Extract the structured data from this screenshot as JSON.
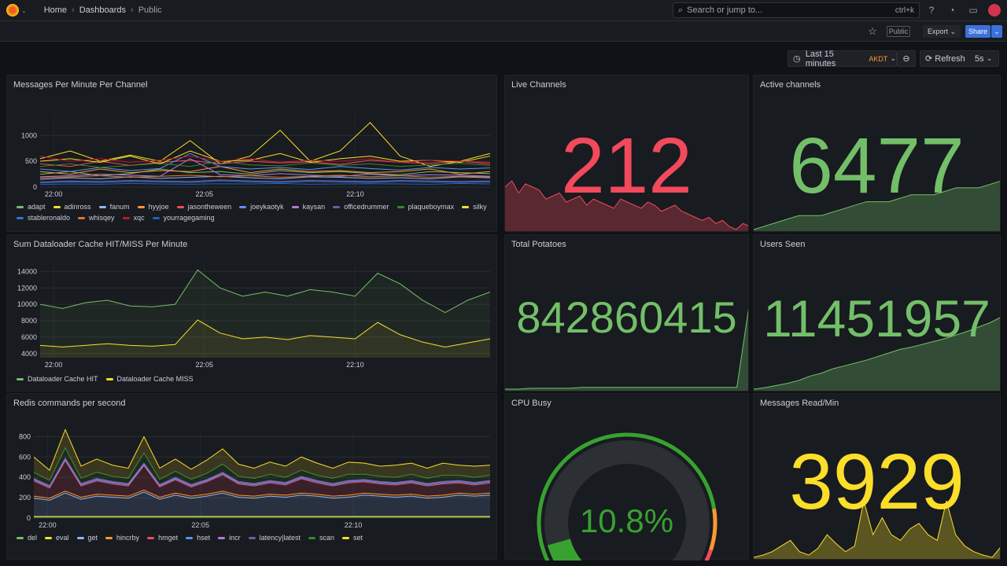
{
  "topbar": {
    "breadcrumbs": [
      "Home",
      "Dashboards",
      "Public"
    ],
    "search_placeholder": "Search or jump to...",
    "search_shortcut": "ctrl+k"
  },
  "toolbar": {
    "public_badge": "Public",
    "export": "Export",
    "share": "Share",
    "time_range": "Last 15 minutes",
    "timezone": "AKDT",
    "refresh": "Refresh",
    "refresh_interval": "5s"
  },
  "panels": {
    "messages": {
      "title": "Messages Per Minute Per Channel"
    },
    "cache": {
      "title": "Sum Dataloader Cache HIT/MISS Per Minute"
    },
    "redis": {
      "title": "Redis commands per second"
    },
    "live": {
      "title": "Live Channels",
      "value": "212",
      "color": "#f2495c"
    },
    "active": {
      "title": "Active channels",
      "value": "6477",
      "color": "#73bf69"
    },
    "potatoes": {
      "title": "Total Potatoes",
      "value": "842860415",
      "color": "#73bf69"
    },
    "users": {
      "title": "Users Seen",
      "value": "11451957",
      "color": "#73bf69"
    },
    "cpu": {
      "title": "CPU Busy",
      "value": "10.8%",
      "percent": 10.8,
      "color": "#37a22f"
    },
    "read": {
      "title": "Messages Read/Min",
      "value": "3929",
      "color": "#fade2a"
    }
  },
  "chart_data": [
    {
      "type": "line",
      "title": "Messages Per Minute Per Channel",
      "xticks": [
        "22:00",
        "22:05",
        "22:10"
      ],
      "yticks": [
        "0",
        "500",
        "1000"
      ],
      "ylim": [
        0,
        1400
      ],
      "series": [
        {
          "name": "adapt",
          "color": "#73bf69",
          "values": [
            250,
            300,
            220,
            260,
            350,
            280,
            300,
            250,
            320,
            280,
            300,
            260,
            240,
            300,
            280,
            260
          ]
        },
        {
          "name": "adinross",
          "color": "#fade2a",
          "values": [
            550,
            700,
            500,
            620,
            500,
            900,
            450,
            600,
            1100,
            500,
            700,
            1250,
            600,
            400,
            500,
            650
          ]
        },
        {
          "name": "fanum",
          "color": "#8ab8ff",
          "values": [
            150,
            180,
            160,
            200,
            170,
            190,
            210,
            180,
            160,
            200,
            190,
            170,
            180,
            160,
            200,
            180
          ]
        },
        {
          "name": "hyyjoe",
          "color": "#ff9830",
          "values": [
            300,
            250,
            350,
            280,
            320,
            300,
            400,
            280,
            350,
            300,
            320,
            280,
            300,
            350,
            250,
            300
          ]
        },
        {
          "name": "jasontheween",
          "color": "#f2495c",
          "values": [
            450,
            400,
            500,
            420,
            480,
            520,
            450,
            500,
            470,
            490,
            440,
            520,
            480,
            460,
            500,
            450
          ]
        },
        {
          "name": "joeykaotyk",
          "color": "#5794f2",
          "values": [
            350,
            300,
            380,
            320,
            360,
            650,
            400,
            350,
            380,
            340,
            400,
            360,
            330,
            380,
            350,
            370
          ]
        },
        {
          "name": "kaysan",
          "color": "#b877d9",
          "values": [
            200,
            220,
            250,
            230,
            210,
            550,
            240,
            220,
            260,
            230,
            210,
            250,
            220,
            240,
            230,
            210
          ]
        },
        {
          "name": "officedrummer",
          "color": "#705da0",
          "values": [
            100,
            120,
            110,
            130,
            120,
            110,
            140,
            120,
            110,
            130,
            120,
            110,
            130,
            120,
            110,
            120
          ]
        },
        {
          "name": "plaqueboymax",
          "color": "#37872d",
          "values": [
            400,
            450,
            380,
            420,
            460,
            400,
            500,
            430,
            410,
            470,
            420,
            450,
            400,
            430,
            460,
            420
          ]
        },
        {
          "name": "silky",
          "color": "#fade2a",
          "values": [
            500,
            550,
            480,
            600,
            450,
            700,
            500,
            520,
            650,
            480,
            550,
            600,
            500,
            520,
            480,
            600
          ]
        },
        {
          "name": "stableronaldo",
          "color": "#3274d9",
          "values": [
            80,
            100,
            90,
            110,
            100,
            90,
            120,
            100,
            90,
            110,
            100,
            90,
            110,
            100,
            90,
            100
          ]
        },
        {
          "name": "whisqey",
          "color": "#e0752d",
          "values": [
            180,
            200,
            220,
            190,
            210,
            230,
            200,
            220,
            190,
            210,
            230,
            200,
            220,
            190,
            210,
            200
          ]
        },
        {
          "name": "xqc",
          "color": "#c4162a",
          "values": [
            600,
            500,
            550,
            480,
            520,
            600,
            500,
            550,
            480,
            520,
            500,
            550,
            480,
            520,
            500,
            480
          ]
        },
        {
          "name": "yourragegaming",
          "color": "#1f60c4",
          "values": [
            50,
            60,
            55,
            70,
            60,
            55,
            65,
            60,
            70,
            55,
            60,
            65,
            60,
            55,
            70,
            60
          ]
        }
      ]
    },
    {
      "type": "line",
      "title": "Sum Dataloader Cache HIT/MISS Per Minute",
      "xticks": [
        "22:00",
        "22:05",
        "22:10"
      ],
      "yticks": [
        "4000",
        "6000",
        "8000",
        "10000",
        "12000",
        "14000"
      ],
      "ylim": [
        3500,
        15000
      ],
      "series": [
        {
          "name": "Dataloader Cache HIT",
          "color": "#73bf69",
          "values": [
            10000,
            9500,
            10200,
            10500,
            9800,
            9700,
            10000,
            14200,
            12000,
            11000,
            11500,
            11000,
            11800,
            11500,
            11000,
            13800,
            12500,
            10500,
            9000,
            10500,
            11500
          ]
        },
        {
          "name": "Dataloader Cache MISS",
          "color": "#fade2a",
          "values": [
            5000,
            4800,
            5000,
            5200,
            5000,
            4900,
            5100,
            8100,
            6500,
            5800,
            6000,
            5700,
            6200,
            6000,
            5800,
            7800,
            6300,
            5400,
            4800,
            5300,
            5800
          ]
        }
      ]
    },
    {
      "type": "area",
      "stacked": true,
      "title": "Redis commands per second",
      "xticks": [
        "22:00",
        "22:05",
        "22:10"
      ],
      "yticks": [
        "0",
        "200",
        "400",
        "600",
        "800"
      ],
      "ylim": [
        0,
        850
      ],
      "series": [
        {
          "name": "del",
          "color": "#73bf69",
          "values": [
            10,
            10,
            10,
            10,
            10,
            10,
            10,
            10,
            10,
            10,
            10,
            10,
            10,
            10,
            10,
            10,
            10,
            10,
            10,
            10,
            10,
            10,
            10,
            10,
            10,
            10,
            10,
            10,
            10,
            10
          ]
        },
        {
          "name": "eval",
          "color": "#fade2a",
          "values": [
            5,
            5,
            5,
            5,
            5,
            5,
            5,
            5,
            5,
            5,
            5,
            5,
            5,
            5,
            5,
            5,
            5,
            5,
            5,
            5,
            5,
            5,
            5,
            5,
            5,
            5,
            5,
            5,
            5,
            5
          ]
        },
        {
          "name": "get",
          "color": "#8ab8ff",
          "values": [
            180,
            160,
            230,
            170,
            200,
            190,
            180,
            240,
            170,
            210,
            180,
            200,
            230,
            190,
            180,
            200,
            190,
            210,
            200,
            180,
            190,
            210,
            200,
            190,
            200,
            180,
            190,
            210,
            200,
            210
          ]
        },
        {
          "name": "hincrby",
          "color": "#ff9830",
          "values": [
            20,
            20,
            20,
            20,
            20,
            20,
            20,
            20,
            20,
            20,
            20,
            20,
            20,
            20,
            20,
            20,
            20,
            20,
            20,
            20,
            20,
            20,
            20,
            20,
            20,
            20,
            20,
            20,
            20,
            20
          ]
        },
        {
          "name": "hmget",
          "color": "#f2495c",
          "values": [
            150,
            100,
            300,
            110,
            130,
            110,
            100,
            240,
            100,
            130,
            90,
            120,
            160,
            110,
            100,
            110,
            100,
            140,
            110,
            100,
            120,
            110,
            100,
            100,
            110,
            100,
            110,
            100,
            90,
            100
          ]
        },
        {
          "name": "hset",
          "color": "#5794f2",
          "values": [
            10,
            10,
            10,
            10,
            10,
            10,
            10,
            10,
            10,
            10,
            10,
            10,
            10,
            10,
            10,
            10,
            10,
            10,
            10,
            10,
            10,
            10,
            10,
            10,
            10,
            10,
            10,
            10,
            10,
            10
          ]
        },
        {
          "name": "incr",
          "color": "#b877d9",
          "values": [
            10,
            10,
            10,
            10,
            10,
            10,
            10,
            10,
            10,
            10,
            10,
            10,
            10,
            10,
            10,
            10,
            10,
            10,
            10,
            10,
            10,
            10,
            10,
            10,
            10,
            10,
            10,
            10,
            10,
            10
          ]
        },
        {
          "name": "latency|latest",
          "color": "#705da0",
          "values": [
            5,
            5,
            5,
            5,
            5,
            5,
            5,
            5,
            5,
            5,
            5,
            5,
            5,
            5,
            5,
            5,
            5,
            5,
            5,
            5,
            5,
            5,
            5,
            5,
            5,
            5,
            5,
            5,
            5,
            5
          ]
        },
        {
          "name": "scan",
          "color": "#37872d",
          "values": [
            60,
            50,
            100,
            50,
            60,
            50,
            50,
            100,
            50,
            60,
            50,
            60,
            80,
            50,
            50,
            60,
            50,
            60,
            50,
            50,
            60,
            50,
            50,
            50,
            60,
            50,
            60,
            50,
            50,
            50
          ]
        },
        {
          "name": "set",
          "color": "#fade2a",
          "values": [
            150,
            100,
            180,
            120,
            130,
            110,
            100,
            160,
            110,
            120,
            100,
            130,
            150,
            120,
            100,
            120,
            110,
            130,
            120,
            100,
            120,
            110,
            100,
            120,
            110,
            100,
            120,
            100,
            110,
            100
          ]
        }
      ]
    },
    {
      "type": "area",
      "title": "Live Channels sparkline",
      "values": [
        230,
        240,
        220,
        235,
        230,
        225,
        210,
        215,
        220,
        205,
        210,
        215,
        200,
        210,
        205,
        200,
        195,
        210,
        205,
        200,
        195,
        205,
        200,
        190,
        195,
        200,
        190,
        185,
        180,
        175,
        180,
        170,
        175,
        165,
        160,
        170,
        165
      ]
    },
    {
      "type": "area",
      "title": "Active channels sparkline",
      "values": [
        6470,
        6471,
        6472,
        6472,
        6473,
        6474,
        6474,
        6475,
        6475,
        6476,
        6476,
        6477
      ]
    },
    {
      "type": "area",
      "title": "Total Potatoes sparkline",
      "values": [
        0,
        0,
        1,
        1,
        1,
        1,
        2,
        2,
        2,
        2,
        2,
        2,
        2,
        2,
        2,
        2,
        2,
        2,
        2,
        100
      ]
    },
    {
      "type": "area",
      "title": "Users Seen sparkline",
      "values": [
        0,
        2,
        5,
        8,
        12,
        18,
        22,
        28,
        32,
        36,
        40,
        45,
        50,
        55,
        58,
        62,
        66,
        70,
        75,
        80,
        86,
        92,
        100
      ]
    },
    {
      "type": "area",
      "title": "Messages Read/Min sparkline",
      "values": [
        10,
        12,
        15,
        20,
        25,
        15,
        12,
        18,
        30,
        22,
        15,
        20,
        60,
        30,
        45,
        30,
        25,
        35,
        40,
        30,
        25,
        60,
        30,
        20,
        15,
        12,
        10,
        20
      ]
    }
  ]
}
